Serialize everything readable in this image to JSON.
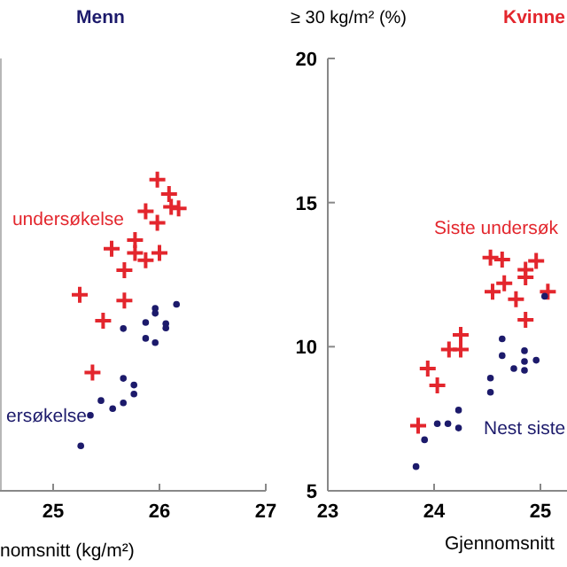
{
  "chart_data": [
    {
      "type": "scatter",
      "title": "Menn",
      "xlabel": "nomsnitt (kg/m²)",
      "xlim": [
        24.5,
        27
      ],
      "xticks": [
        25,
        26,
        27
      ],
      "ylim": [
        5,
        20
      ],
      "tick_labels": "x",
      "series": [
        {
          "name": "undersøkelse",
          "color": "#e3262d",
          "marker": "cross",
          "x": [
            25.98,
            26.09,
            26.11,
            26.18,
            25.87,
            25.98,
            25.55,
            25.77,
            25.77,
            26.0,
            25.87,
            25.67,
            25.25,
            25.67,
            25.47,
            25.37
          ],
          "values": [
            15.8,
            15.3,
            14.85,
            14.8,
            14.7,
            14.3,
            13.4,
            13.7,
            13.25,
            13.25,
            13.0,
            12.65,
            11.8,
            11.6,
            10.9,
            9.1
          ]
        },
        {
          "name": "ersøkelse",
          "color": "#1c1a6b",
          "marker": "circle",
          "x": [
            26.16,
            25.96,
            25.96,
            26.06,
            26.06,
            25.87,
            25.66,
            25.87,
            25.96,
            25.66,
            25.76,
            25.76,
            25.45,
            25.66,
            25.56,
            25.35,
            25.26
          ],
          "values": [
            11.47,
            11.33,
            11.16,
            10.8,
            10.65,
            10.84,
            10.63,
            10.29,
            10.14,
            8.9,
            8.67,
            8.36,
            8.13,
            8.05,
            7.85,
            7.62,
            6.56
          ]
        }
      ]
    },
    {
      "type": "scatter",
      "title": "Kvinne",
      "ylabel": "≥ 30 kg/m² (%)",
      "xlabel": "Gjennomsnitt",
      "xlim": [
        23,
        25.25
      ],
      "xticks": [
        23,
        24,
        25
      ],
      "ylim": [
        5,
        20
      ],
      "yticks": [
        5,
        10,
        15,
        20
      ],
      "series": [
        {
          "name": "Siste undersøk",
          "color": "#e3262d",
          "marker": "cross",
          "x": [
            24.53,
            24.64,
            24.66,
            24.55,
            24.77,
            24.86,
            24.96,
            24.86,
            25.07,
            24.86,
            24.25,
            24.14,
            24.25,
            23.94,
            24.03,
            23.85
          ],
          "values": [
            13.09,
            13.02,
            12.2,
            11.91,
            11.65,
            12.67,
            12.98,
            12.41,
            11.91,
            10.93,
            10.41,
            9.9,
            9.9,
            9.24,
            8.66,
            7.26
          ]
        },
        {
          "name": "Nest siste",
          "color": "#1c1a6b",
          "marker": "circle",
          "x": [
            24.64,
            24.64,
            24.53,
            24.53,
            24.75,
            24.85,
            24.85,
            24.85,
            24.96,
            25.04,
            24.23,
            24.03,
            24.13,
            24.23,
            23.91,
            23.83
          ],
          "values": [
            10.27,
            9.69,
            8.91,
            8.42,
            9.24,
            9.86,
            9.49,
            9.18,
            9.53,
            11.75,
            7.8,
            7.33,
            7.33,
            7.18,
            6.77,
            5.84
          ]
        }
      ]
    }
  ]
}
